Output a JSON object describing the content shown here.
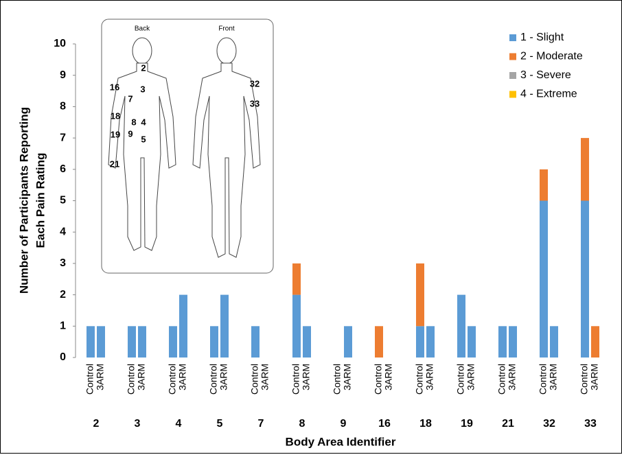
{
  "chart_data": {
    "type": "stacked-grouped-bar",
    "x_label": "Body Area Identifier",
    "y_label": [
      "Number of Participants Reporting",
      "Each Pain Rating"
    ],
    "categories": [
      "2",
      "3",
      "4",
      "5",
      "7",
      "8",
      "9",
      "16",
      "18",
      "19",
      "21",
      "32",
      "33"
    ],
    "subcategories": [
      "Control",
      "3ARM"
    ],
    "series": [
      {
        "name": "1 - Slight",
        "color": "#5b9bd5",
        "values": [
          [
            1,
            1
          ],
          [
            1,
            1
          ],
          [
            1,
            2
          ],
          [
            1,
            2
          ],
          [
            1,
            0
          ],
          [
            2,
            1
          ],
          [
            0,
            1
          ],
          [
            0,
            0
          ],
          [
            1,
            1
          ],
          [
            2,
            1
          ],
          [
            1,
            1
          ],
          [
            5,
            1
          ],
          [
            5,
            0
          ]
        ]
      },
      {
        "name": "2 - Moderate",
        "color": "#ed7d31",
        "values": [
          [
            0,
            0
          ],
          [
            0,
            0
          ],
          [
            0,
            0
          ],
          [
            0,
            0
          ],
          [
            0,
            0
          ],
          [
            1,
            0
          ],
          [
            0,
            0
          ],
          [
            1,
            0
          ],
          [
            2,
            0
          ],
          [
            0,
            0
          ],
          [
            0,
            0
          ],
          [
            1,
            0
          ],
          [
            2,
            1
          ]
        ]
      },
      {
        "name": "3 - Severe",
        "color": "#a5a5a5",
        "values": [
          [
            0,
            0
          ],
          [
            0,
            0
          ],
          [
            0,
            0
          ],
          [
            0,
            0
          ],
          [
            0,
            0
          ],
          [
            0,
            0
          ],
          [
            0,
            0
          ],
          [
            0,
            0
          ],
          [
            0,
            0
          ],
          [
            0,
            0
          ],
          [
            0,
            0
          ],
          [
            0,
            0
          ],
          [
            0,
            0
          ]
        ]
      },
      {
        "name": "4 - Extreme",
        "color": "#ffc000",
        "values": [
          [
            0,
            0
          ],
          [
            0,
            0
          ],
          [
            0,
            0
          ],
          [
            0,
            0
          ],
          [
            0,
            0
          ],
          [
            0,
            0
          ],
          [
            0,
            0
          ],
          [
            0,
            0
          ],
          [
            0,
            0
          ],
          [
            0,
            0
          ],
          [
            0,
            0
          ],
          [
            0,
            0
          ],
          [
            0,
            0
          ]
        ]
      }
    ],
    "ylim": [
      0,
      10
    ],
    "yticks": [
      0,
      1,
      2,
      3,
      4,
      5,
      6,
      7,
      8,
      9,
      10
    ],
    "legend": "top-right"
  },
  "inset": {
    "back": "Back",
    "front": "Front",
    "labels": [
      "2",
      "3",
      "7",
      "16",
      "18",
      "8",
      "4",
      "19",
      "9",
      "5",
      "21",
      "32",
      "33"
    ]
  }
}
